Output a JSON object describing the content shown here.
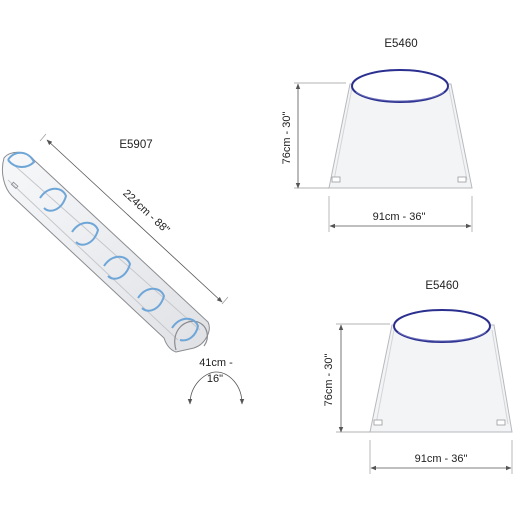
{
  "products": [
    {
      "code": "E5907",
      "length_label": "224cm - 88\"",
      "width_label_line1": "41cm -",
      "width_label_line2": "16\""
    },
    {
      "code": "E5460",
      "height_label": "76cm - 30\"",
      "width_label": "91cm - 36\""
    },
    {
      "code": "E5460",
      "height_label": "76cm - 30\"",
      "width_label": "91cm - 36\""
    }
  ],
  "colors": {
    "ellipse_stroke": "#2b2f8f",
    "ellipse_fill": "#ffffff",
    "hoop": "#6fa6d8",
    "panel_fill": "#f3f4f6",
    "panel_stroke": "#b7b9bd"
  }
}
